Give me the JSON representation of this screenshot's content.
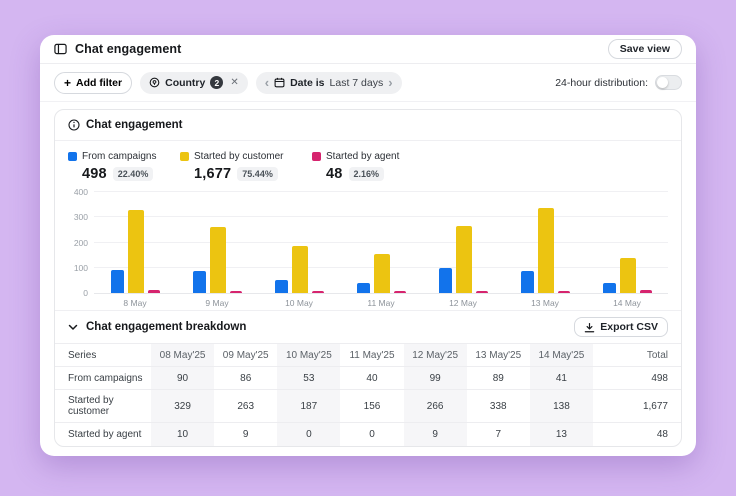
{
  "window": {
    "title": "Chat engagement",
    "save_view_label": "Save view"
  },
  "filters": {
    "add_filter_label": "Add filter",
    "country_chip": {
      "label": "Country",
      "count": "2"
    },
    "date_chip": {
      "prefix": "Date is",
      "value": "Last 7 days"
    },
    "distribution_label": "24-hour distribution:",
    "distribution_toggle_state": "off"
  },
  "icons": {
    "plus": "+",
    "close": "✕",
    "chevron_left": "‹",
    "chevron_right": "›"
  },
  "card": {
    "title": "Chat engagement"
  },
  "legend": [
    {
      "label": "From campaigns",
      "value": "498",
      "percent": "22.40%",
      "color": "#1273eb"
    },
    {
      "label": "Started by customer",
      "value": "1,677",
      "percent": "75.44%",
      "color": "#ecc411"
    },
    {
      "label": "Started by agent",
      "value": "48",
      "percent": "2.16%",
      "color": "#d6246e"
    }
  ],
  "chart_data": {
    "type": "bar",
    "title": "Chat engagement",
    "categories": [
      "8 May",
      "9 May",
      "10 May",
      "11 May",
      "12 May",
      "13 May",
      "14 May"
    ],
    "series": [
      {
        "name": "From campaigns",
        "color": "#1273eb",
        "values": [
          90,
          86,
          53,
          40,
          99,
          89,
          41
        ]
      },
      {
        "name": "Started by customer",
        "color": "#ecc411",
        "values": [
          329,
          263,
          187,
          156,
          266,
          338,
          138
        ]
      },
      {
        "name": "Started by agent",
        "color": "#d6246e",
        "values": [
          10,
          9,
          0,
          0,
          9,
          7,
          13
        ]
      }
    ],
    "xlabel": "",
    "ylabel": "",
    "ylim": [
      0,
      400
    ],
    "yticks": [
      0,
      100,
      200,
      300,
      400
    ],
    "grid": true,
    "legend_position": "top"
  },
  "breakdown": {
    "title": "Chat engagement breakdown",
    "export_label": "Export CSV",
    "columns": [
      "Series",
      "08 May'25",
      "09 May'25",
      "10 May'25",
      "11 May'25",
      "12 May'25",
      "13 May'25",
      "14 May'25",
      "Total"
    ],
    "rows": [
      [
        "From campaigns",
        "90",
        "86",
        "53",
        "40",
        "99",
        "89",
        "41",
        "498"
      ],
      [
        "Started by customer",
        "329",
        "263",
        "187",
        "156",
        "266",
        "338",
        "138",
        "1,677"
      ],
      [
        "Started by agent",
        "10",
        "9",
        "0",
        "0",
        "9",
        "7",
        "13",
        "48"
      ]
    ]
  }
}
